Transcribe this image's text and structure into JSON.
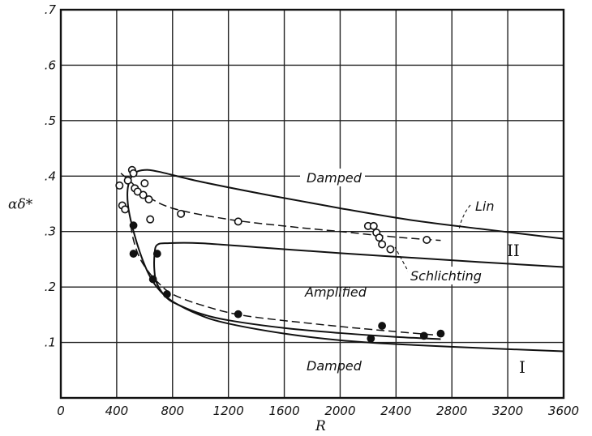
{
  "chart_data": {
    "type": "line",
    "xlabel": "R",
    "ylabel": "αδ*",
    "xlim": [
      0,
      3600
    ],
    "ylim": [
      0,
      0.7
    ],
    "x_tick_labels": [
      "0",
      "400",
      "800",
      "1200",
      "1600",
      "2000",
      "2400",
      "2800",
      "3200",
      "3600"
    ],
    "y_tick_labels": [
      ".1",
      ".2",
      ".3",
      ".4",
      ".5",
      ".6",
      ".7"
    ],
    "grid": true,
    "region_labels": {
      "damped_upper": "Damped",
      "amplified": "Amplified",
      "damped_lower": "Damped"
    },
    "curve_labels": {
      "lin": "Lin",
      "schlichting": "Schlichting",
      "branch_ii": "II",
      "branch_i": "I"
    },
    "curves": [
      {
        "id": "schlichting",
        "points": [
          [
            3600,
            0.084
          ],
          [
            3000,
            0.09
          ],
          [
            2400,
            0.097
          ],
          [
            2000,
            0.104
          ],
          [
            1600,
            0.116
          ],
          [
            1200,
            0.134
          ],
          [
            1000,
            0.149
          ],
          [
            800,
            0.174
          ],
          [
            700,
            0.196
          ],
          [
            640,
            0.218
          ],
          [
            590,
            0.246
          ],
          [
            540,
            0.283
          ],
          [
            500,
            0.321
          ],
          [
            480,
            0.35
          ],
          [
            478,
            0.375
          ],
          [
            495,
            0.393
          ],
          [
            530,
            0.406
          ],
          [
            600,
            0.411
          ],
          [
            700,
            0.408
          ],
          [
            1000,
            0.39
          ],
          [
            1500,
            0.365
          ],
          [
            2000,
            0.342
          ],
          [
            2500,
            0.321
          ],
          [
            3000,
            0.305
          ],
          [
            3600,
            0.287
          ]
        ]
      },
      {
        "id": "lin",
        "points": [
          [
            2720,
            0.106
          ],
          [
            2400,
            0.11
          ],
          [
            2000,
            0.117
          ],
          [
            1600,
            0.126
          ],
          [
            1200,
            0.14
          ],
          [
            1000,
            0.152
          ],
          [
            850,
            0.167
          ],
          [
            760,
            0.18
          ],
          [
            690,
            0.205
          ],
          [
            670,
            0.23
          ],
          [
            672,
            0.262
          ],
          [
            690,
            0.276
          ],
          [
            760,
            0.279
          ],
          [
            1000,
            0.279
          ],
          [
            1500,
            0.27
          ],
          [
            2000,
            0.261
          ],
          [
            2500,
            0.253
          ],
          [
            3000,
            0.245
          ],
          [
            3600,
            0.236
          ]
        ]
      }
    ],
    "open_points": [
      [
        420,
        0.383
      ],
      [
        440,
        0.347
      ],
      [
        460,
        0.34
      ],
      [
        480,
        0.392
      ],
      [
        510,
        0.411
      ],
      [
        520,
        0.405
      ],
      [
        530,
        0.378
      ],
      [
        550,
        0.372
      ],
      [
        590,
        0.366
      ],
      [
        600,
        0.387
      ],
      [
        630,
        0.358
      ],
      [
        640,
        0.322
      ],
      [
        860,
        0.332
      ],
      [
        1270,
        0.318
      ],
      [
        2200,
        0.31
      ],
      [
        2240,
        0.31
      ],
      [
        2260,
        0.298
      ],
      [
        2280,
        0.289
      ],
      [
        2300,
        0.277
      ],
      [
        2360,
        0.268
      ],
      [
        2620,
        0.285
      ]
    ],
    "filled_points": [
      [
        520,
        0.311
      ],
      [
        520,
        0.26
      ],
      [
        660,
        0.214
      ],
      [
        690,
        0.26
      ],
      [
        760,
        0.187
      ],
      [
        1270,
        0.151
      ],
      [
        2220,
        0.107
      ],
      [
        2300,
        0.13
      ],
      [
        2600,
        0.112
      ],
      [
        2720,
        0.116
      ]
    ],
    "fit_open": [
      [
        430,
        0.405
      ],
      [
        500,
        0.39
      ],
      [
        600,
        0.367
      ],
      [
        800,
        0.342
      ],
      [
        1200,
        0.322
      ],
      [
        1600,
        0.31
      ],
      [
        2000,
        0.3
      ],
      [
        2400,
        0.29
      ],
      [
        2720,
        0.284
      ]
    ],
    "fit_filled": [
      [
        500,
        0.312
      ],
      [
        520,
        0.285
      ],
      [
        560,
        0.255
      ],
      [
        620,
        0.23
      ],
      [
        700,
        0.207
      ],
      [
        800,
        0.187
      ],
      [
        1000,
        0.168
      ],
      [
        1300,
        0.149
      ],
      [
        1800,
        0.134
      ],
      [
        2200,
        0.124
      ],
      [
        2700,
        0.113
      ]
    ]
  }
}
